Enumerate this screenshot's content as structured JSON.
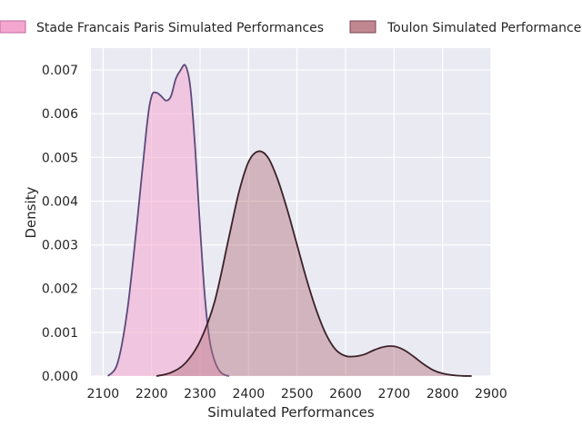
{
  "chart_data": {
    "type": "area",
    "title": "",
    "xlabel": "Simulated Performances",
    "ylabel": "Density",
    "xlim": [
      2075,
      2900
    ],
    "ylim": [
      0,
      0.0075
    ],
    "xticks": [
      2100,
      2200,
      2300,
      2400,
      2500,
      2600,
      2700,
      2800,
      2900
    ],
    "yticks": [
      0.0,
      0.001,
      0.002,
      0.003,
      0.004,
      0.005,
      0.006,
      0.007
    ],
    "xtick_labels": [
      "2100",
      "2200",
      "2300",
      "2400",
      "2500",
      "2600",
      "2700",
      "2800",
      "2900"
    ],
    "ytick_labels": [
      "0.000",
      "0.001",
      "0.002",
      "0.003",
      "0.004",
      "0.005",
      "0.006",
      "0.007"
    ],
    "grid": true,
    "legend_position": "top",
    "series": [
      {
        "name": "Stade Francais Paris Simulated Performances",
        "fill_color": "#f4a6cf",
        "line_color": "#5b4a7a",
        "x": [
          2110,
          2130,
          2150,
          2170,
          2190,
          2200,
          2210,
          2220,
          2230,
          2240,
          2250,
          2260,
          2270,
          2280,
          2290,
          2300,
          2310,
          2320,
          2330,
          2340,
          2350,
          2360
        ],
        "y": [
          0.0,
          0.0003,
          0.0015,
          0.0035,
          0.0057,
          0.0064,
          0.00648,
          0.0064,
          0.0063,
          0.0064,
          0.0068,
          0.007,
          0.0071,
          0.0066,
          0.0052,
          0.0034,
          0.0018,
          0.0008,
          0.00035,
          0.00012,
          3e-05,
          0.0
        ]
      },
      {
        "name": "Toulon Simulated Performances",
        "fill_color": "#b67480",
        "line_color": "#3a2228",
        "x": [
          2210,
          2240,
          2270,
          2300,
          2330,
          2360,
          2380,
          2400,
          2420,
          2440,
          2460,
          2480,
          2500,
          2520,
          2540,
          2560,
          2580,
          2600,
          2620,
          2640,
          2660,
          2680,
          2700,
          2720,
          2740,
          2760,
          2780,
          2800,
          2830,
          2860
        ],
        "y": [
          0.0,
          8e-05,
          0.0003,
          0.0008,
          0.0017,
          0.0032,
          0.0042,
          0.0049,
          0.00514,
          0.005,
          0.0045,
          0.0038,
          0.003,
          0.0022,
          0.0015,
          0.00095,
          0.0006,
          0.00046,
          0.00045,
          0.0005,
          0.0006,
          0.00067,
          0.00068,
          0.0006,
          0.00045,
          0.00028,
          0.00014,
          6e-05,
          1e-05,
          0.0
        ]
      }
    ]
  }
}
